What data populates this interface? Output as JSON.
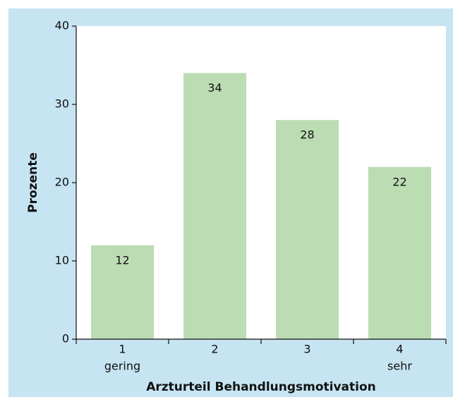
{
  "chart_data": {
    "type": "bar",
    "x_label": "Arzturteil Behandlungsmotivation",
    "y_label": "Prozente",
    "categories": [
      "1",
      "2",
      "3",
      "4"
    ],
    "category_sublabels": [
      "gering",
      null,
      null,
      "sehr"
    ],
    "values": [
      12,
      34,
      28,
      22
    ],
    "color": "#bcdcb4",
    "ylim": [
      0,
      40
    ],
    "yticks": [
      0,
      10,
      20,
      30,
      40
    ],
    "grid": false
  }
}
